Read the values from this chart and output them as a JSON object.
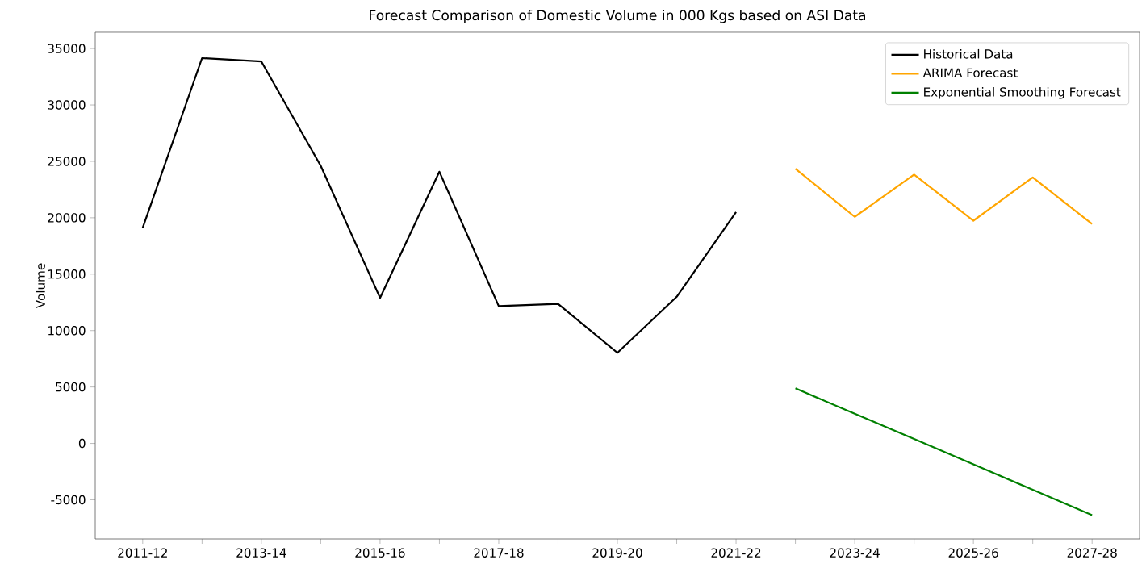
{
  "chart_data": {
    "type": "line",
    "title": "Forecast Comparison of Domestic Volume in 000 Kgs based on ASI Data",
    "ylabel": "Volume",
    "categories": [
      "2011-12",
      null,
      "2013-14",
      null,
      "2015-16",
      null,
      "2017-18",
      null,
      "2019-20",
      null,
      "2021-22",
      null,
      "2023-24",
      null,
      "2025-26",
      null,
      "2027-28"
    ],
    "series": [
      {
        "name": "Historical Data",
        "color": "#000000",
        "values": [
          19100,
          34150,
          33850,
          24600,
          12900,
          24080,
          12170,
          12360,
          8030,
          13000,
          20500,
          null,
          null,
          null,
          null,
          null,
          null
        ]
      },
      {
        "name": "ARIMA Forecast",
        "color": "#ffa500",
        "values": [
          null,
          null,
          null,
          null,
          null,
          null,
          null,
          null,
          null,
          null,
          null,
          24340,
          20080,
          23820,
          19740,
          23580,
          19440
        ]
      },
      {
        "name": "Exponential Smoothing Forecast",
        "color": "#008000",
        "values": [
          null,
          null,
          null,
          null,
          null,
          null,
          null,
          null,
          null,
          null,
          null,
          4880,
          2630,
          390,
          -1860,
          -4110,
          -6360
        ]
      }
    ],
    "ylim": [
      -8470,
      36440
    ],
    "yticks": [
      -5000,
      0,
      5000,
      10000,
      15000,
      20000,
      25000,
      30000,
      35000
    ],
    "legend": "top right",
    "grid": false,
    "marker": "none",
    "line_style": "solid"
  }
}
